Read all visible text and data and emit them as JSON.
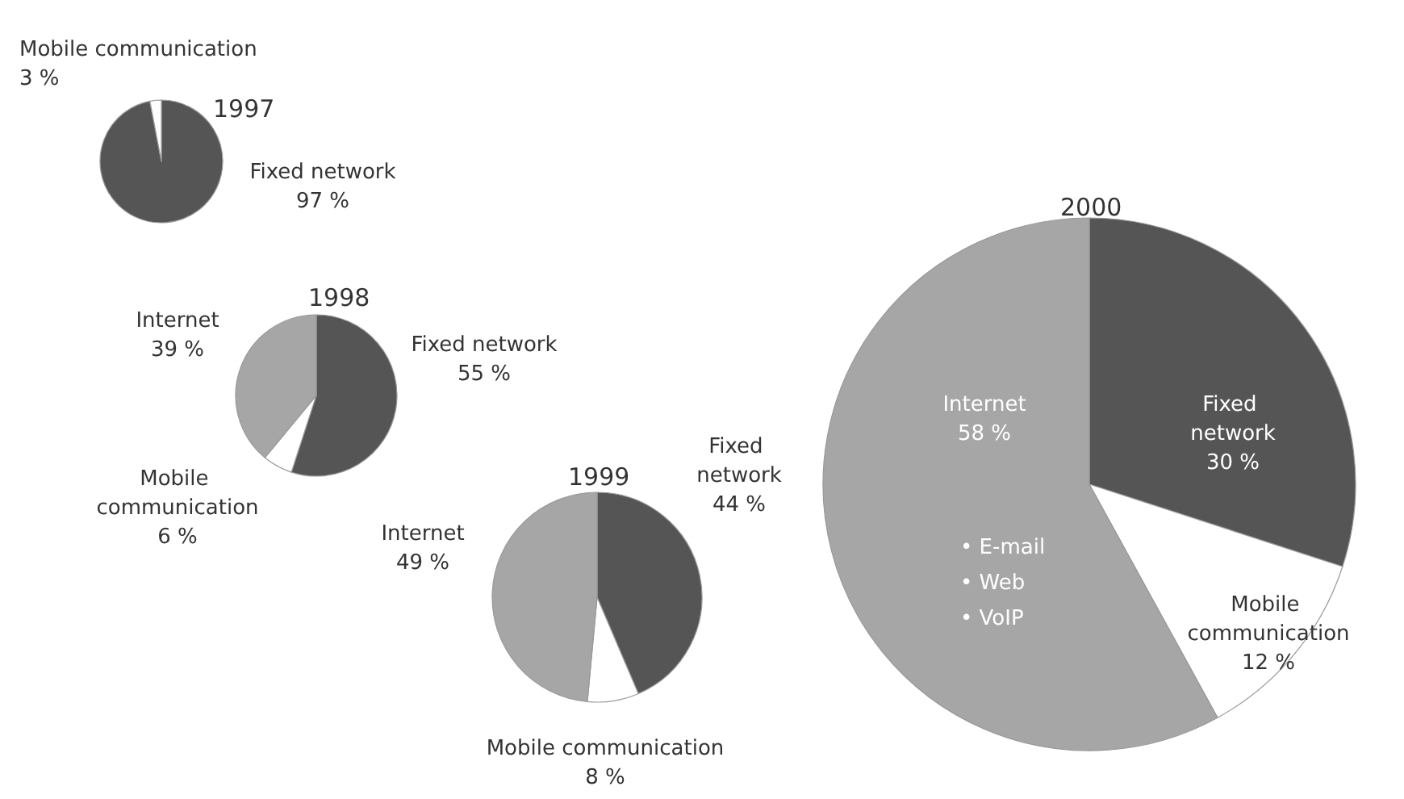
{
  "chart_data": [
    {
      "type": "pie",
      "title": "1997",
      "categories": [
        "Fixed network",
        "Mobile communication"
      ],
      "values": [
        97,
        3
      ],
      "value_labels": [
        "97 %",
        "3 %"
      ],
      "colors": [
        "#555555",
        "#ffffff"
      ]
    },
    {
      "type": "pie",
      "title": "1998",
      "categories": [
        "Fixed network",
        "Mobile communication",
        "Internet"
      ],
      "values": [
        55,
        6,
        39
      ],
      "value_labels": [
        "55 %",
        "6 %",
        "39 %"
      ],
      "colors": [
        "#555555",
        "#ffffff",
        "#a6a6a6"
      ]
    },
    {
      "type": "pie",
      "title": "1999",
      "categories": [
        "Fixed network",
        "Mobile communication",
        "Internet"
      ],
      "values": [
        44,
        8,
        49
      ],
      "value_labels": [
        "44 %",
        "8 %",
        "49 %"
      ],
      "colors": [
        "#555555",
        "#ffffff",
        "#a6a6a6"
      ]
    },
    {
      "type": "pie",
      "title": "2000",
      "categories": [
        "Fixed network",
        "Mobile communication",
        "Internet"
      ],
      "values": [
        30,
        12,
        58
      ],
      "value_labels": [
        "30 %",
        "12 %",
        "58 %"
      ],
      "colors": [
        "#555555",
        "#ffffff",
        "#a6a6a6"
      ],
      "annotations": [
        "• E-mail",
        "• Web",
        "• VoIP"
      ]
    }
  ]
}
